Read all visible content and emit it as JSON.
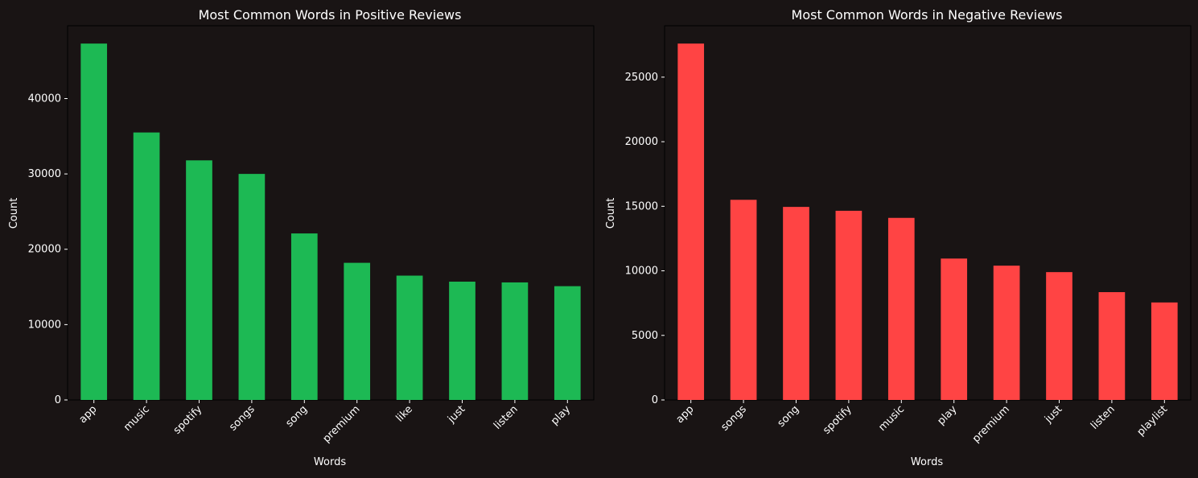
{
  "colors": {
    "background": "#191414",
    "positive_bar": "#1DB954",
    "negative_bar": "#FF4444",
    "text": "#ffffff",
    "axis": "#000000"
  },
  "chart_data": [
    {
      "type": "bar",
      "title": "Most Common Words in Positive Reviews",
      "xlabel": "Words",
      "ylabel": "Count",
      "categories": [
        "app",
        "music",
        "spotify",
        "songs",
        "song",
        "premium",
        "like",
        "just",
        "listen",
        "play"
      ],
      "values": [
        47300,
        35500,
        31800,
        30000,
        22100,
        18200,
        16500,
        15700,
        15600,
        15100
      ],
      "yticks": [
        0,
        10000,
        20000,
        30000,
        40000
      ],
      "ylim": [
        0,
        49665
      ],
      "color": "#1DB954",
      "grid": false
    },
    {
      "type": "bar",
      "title": "Most Common Words in Negative Reviews",
      "xlabel": "Words",
      "ylabel": "Count",
      "categories": [
        "app",
        "songs",
        "song",
        "spotify",
        "music",
        "play",
        "premium",
        "just",
        "listen",
        "playlist"
      ],
      "values": [
        27600,
        15500,
        14950,
        14650,
        14100,
        10950,
        10400,
        9900,
        8350,
        7550
      ],
      "yticks": [
        0,
        5000,
        10000,
        15000,
        20000,
        25000
      ],
      "ylim": [
        0,
        28980
      ],
      "color": "#FF4444",
      "grid": false
    }
  ]
}
